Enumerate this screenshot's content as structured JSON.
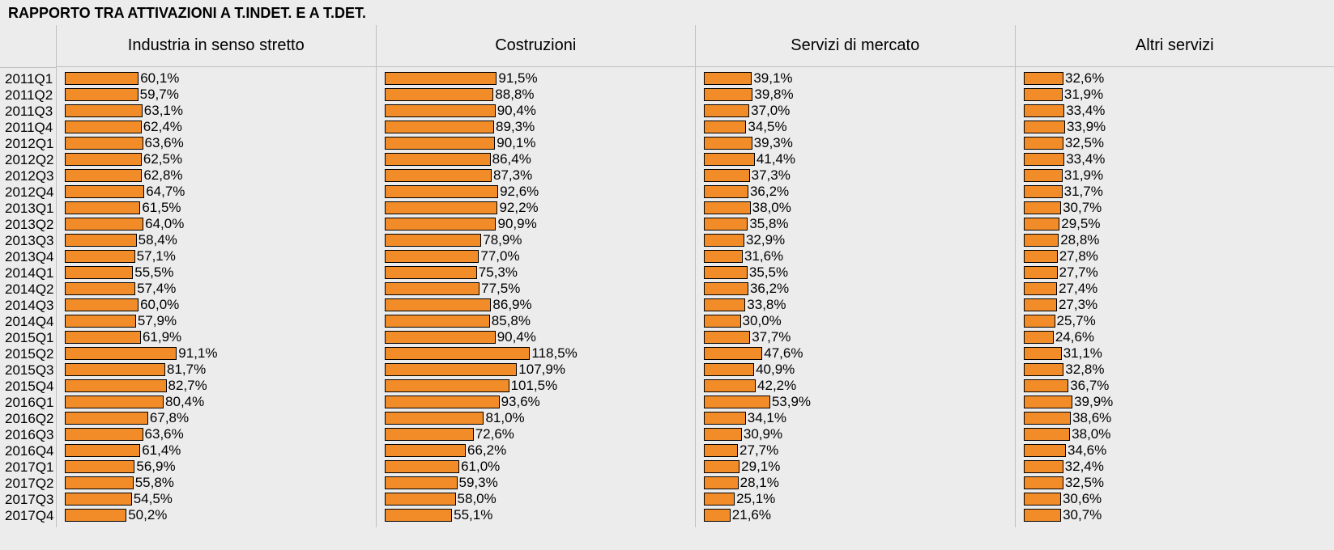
{
  "title": "RAPPORTO TRA ATTIVAZIONI A T.INDET. E A T.DET.",
  "title_fontsize": 18,
  "header_fontsize": 20,
  "label_fontsize": 17,
  "value_fontsize": 17,
  "bar_color": "#f28c28",
  "bar_border_color": "#000000",
  "background_color": "#ececec",
  "grid_color": "rgba(0,0,0,0)",
  "xmax_per_panel": 250,
  "periods": [
    "2011Q1",
    "2011Q2",
    "2011Q3",
    "2011Q4",
    "2012Q1",
    "2012Q2",
    "2012Q3",
    "2012Q4",
    "2013Q1",
    "2013Q2",
    "2013Q3",
    "2013Q4",
    "2014Q1",
    "2014Q2",
    "2014Q3",
    "2014Q4",
    "2015Q1",
    "2015Q2",
    "2015Q3",
    "2015Q4",
    "2016Q1",
    "2016Q2",
    "2016Q3",
    "2016Q4",
    "2017Q1",
    "2017Q2",
    "2017Q3",
    "2017Q4"
  ],
  "panels": [
    {
      "label": "Industria in senso stretto",
      "values": [
        60.1,
        59.7,
        63.1,
        62.4,
        63.6,
        62.5,
        62.8,
        64.7,
        61.5,
        64.0,
        58.4,
        57.1,
        55.5,
        57.4,
        60.0,
        57.9,
        61.9,
        91.1,
        81.7,
        82.7,
        80.4,
        67.8,
        63.6,
        61.4,
        56.9,
        55.8,
        54.5,
        50.2
      ]
    },
    {
      "label": "Costruzioni",
      "values": [
        91.5,
        88.8,
        90.4,
        89.3,
        90.1,
        86.4,
        87.3,
        92.6,
        92.2,
        90.9,
        78.9,
        77.0,
        75.3,
        77.5,
        86.9,
        85.8,
        90.4,
        118.5,
        107.9,
        101.5,
        93.6,
        81.0,
        72.6,
        66.2,
        61.0,
        59.3,
        58.0,
        55.1
      ]
    },
    {
      "label": "Servizi di mercato",
      "values": [
        39.1,
        39.8,
        37.0,
        34.5,
        39.3,
        41.4,
        37.3,
        36.2,
        38.0,
        35.8,
        32.9,
        31.6,
        35.5,
        36.2,
        33.8,
        30.0,
        37.7,
        47.6,
        40.9,
        42.2,
        53.9,
        34.1,
        30.9,
        27.7,
        29.1,
        28.1,
        25.1,
        21.6
      ]
    },
    {
      "label": "Altri servizi",
      "values": [
        32.6,
        31.9,
        33.4,
        33.9,
        32.5,
        33.4,
        31.9,
        31.7,
        30.7,
        29.5,
        28.8,
        27.8,
        27.7,
        27.4,
        27.3,
        25.7,
        24.6,
        31.1,
        32.8,
        36.7,
        39.9,
        38.6,
        38.0,
        34.6,
        32.4,
        32.5,
        30.6,
        30.7
      ]
    }
  ]
}
